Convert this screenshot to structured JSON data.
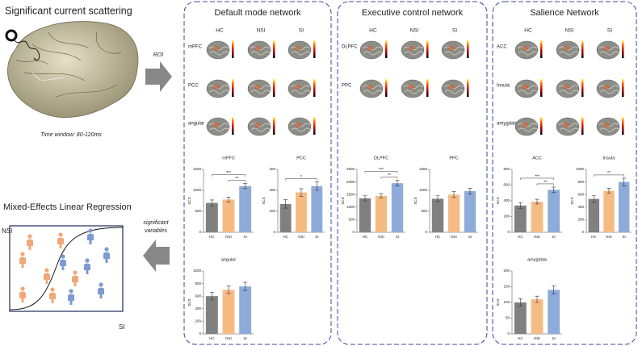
{
  "left": {
    "scatter_title": "Significant current scattering",
    "time_window": "Time window: 80-120ms",
    "roi_arrow": "ROI",
    "regression_title": "Mixed-Effects Linear Regression",
    "feedback_arrow": [
      "significant",
      "variables"
    ],
    "plot_ylabel": "NSI",
    "plot_xlabel": "SI"
  },
  "panels": [
    {
      "title": "Default mode network",
      "columns": [
        "HC",
        "NSI",
        "SI"
      ],
      "rows": [
        "mPFC",
        "PCC",
        "angular"
      ]
    },
    {
      "title": "Executive control network",
      "columns": [
        "HC",
        "NSI",
        "SI"
      ],
      "rows": [
        "DLPFC",
        "PPC"
      ]
    },
    {
      "title": "Salience Network",
      "columns": [
        "HC",
        "NSI",
        "SI"
      ],
      "rows": [
        "ACC",
        "Insula",
        "amygdala"
      ]
    }
  ],
  "chart_data": [
    {
      "type": "bar",
      "title": "mPFC",
      "ylabel": "SCS",
      "categories": [
        "HC",
        "NSI",
        "SI"
      ],
      "values": [
        700,
        780,
        1100
      ],
      "errors": [
        70,
        60,
        60
      ],
      "colors": [
        "#808080",
        "#f6bb85",
        "#8eabd9"
      ],
      "ylim": [
        0,
        1500
      ],
      "yticks": [
        0,
        500,
        1000,
        1500
      ],
      "annotations": [
        {
          "text": "***",
          "from": 0,
          "to": 2
        },
        {
          "text": "**",
          "from": 1,
          "to": 2
        }
      ]
    },
    {
      "type": "bar",
      "title": "PCC",
      "ylabel": "SCS",
      "categories": [
        "HC",
        "NSI",
        "SI"
      ],
      "values": [
        135,
        190,
        220
      ],
      "errors": [
        20,
        18,
        20
      ],
      "colors": [
        "#808080",
        "#f6bb85",
        "#8eabd9"
      ],
      "ylim": [
        0,
        300
      ],
      "yticks": [
        0,
        100,
        200,
        300
      ],
      "annotations": [
        {
          "text": "*",
          "from": 0,
          "to": 2
        }
      ]
    },
    {
      "type": "bar",
      "title": "angular",
      "ylabel": "SCS",
      "categories": [
        "HC",
        "NSI",
        "SI"
      ],
      "values": [
        600,
        700,
        755
      ],
      "errors": [
        60,
        60,
        65
      ],
      "colors": [
        "#808080",
        "#f6bb85",
        "#8eabd9"
      ],
      "ylim": [
        0,
        1000
      ],
      "yticks": [
        0,
        200,
        400,
        600,
        800,
        1000
      ],
      "annotations": []
    },
    {
      "type": "bar",
      "title": "DLPFC",
      "ylabel": "SCS",
      "categories": [
        "HC",
        "NSI",
        "SI"
      ],
      "values": [
        1350,
        1450,
        1950
      ],
      "errors": [
        100,
        90,
        110
      ],
      "colors": [
        "#808080",
        "#f6bb85",
        "#8eabd9"
      ],
      "ylim": [
        0,
        2500
      ],
      "yticks": [
        0,
        500,
        1000,
        1500,
        2000,
        2500
      ],
      "annotations": [
        {
          "text": "***",
          "from": 0,
          "to": 2
        },
        {
          "text": "**",
          "from": 1,
          "to": 2
        }
      ]
    },
    {
      "type": "bar",
      "title": "PPC",
      "ylabel": "SCS",
      "categories": [
        "HC",
        "NSI",
        "SI"
      ],
      "values": [
        800,
        900,
        980
      ],
      "errors": [
        70,
        70,
        70
      ],
      "colors": [
        "#808080",
        "#f6bb85",
        "#8eabd9"
      ],
      "ylim": [
        0,
        1500
      ],
      "yticks": [
        0,
        500,
        1000,
        1500
      ],
      "annotations": []
    },
    {
      "type": "bar",
      "title": "ACC",
      "ylabel": "SCS",
      "categories": [
        "HC",
        "NSI",
        "SI"
      ],
      "values": [
        340,
        390,
        540
      ],
      "errors": [
        35,
        30,
        35
      ],
      "colors": [
        "#808080",
        "#f6bb85",
        "#8eabd9"
      ],
      "ylim": [
        0,
        800
      ],
      "yticks": [
        0,
        200,
        400,
        600,
        800
      ],
      "annotations": [
        {
          "text": "***",
          "from": 0,
          "to": 2
        },
        {
          "text": "**",
          "from": 1,
          "to": 2
        }
      ]
    },
    {
      "type": "bar",
      "title": "Insula",
      "ylabel": "SCS",
      "categories": [
        "HC",
        "NSI",
        "SI"
      ],
      "values": [
        530,
        660,
        800
      ],
      "errors": [
        50,
        40,
        60
      ],
      "colors": [
        "#808080",
        "#f6bb85",
        "#8eabd9"
      ],
      "ylim": [
        0,
        1000
      ],
      "yticks": [
        0,
        200,
        400,
        600,
        800,
        1000
      ],
      "annotations": [
        {
          "text": "**",
          "from": 0,
          "to": 2
        }
      ]
    },
    {
      "type": "bar",
      "title": "amygdala",
      "ylabel": "SCS",
      "categories": [
        "HC",
        "NSI",
        "SI"
      ],
      "values": [
        100,
        110,
        140
      ],
      "errors": [
        12,
        10,
        12
      ],
      "colors": [
        "#808080",
        "#f6bb85",
        "#8eabd9"
      ],
      "ylim": [
        0,
        200
      ],
      "yticks": [
        0,
        50,
        100,
        150,
        200
      ],
      "annotations": []
    }
  ]
}
